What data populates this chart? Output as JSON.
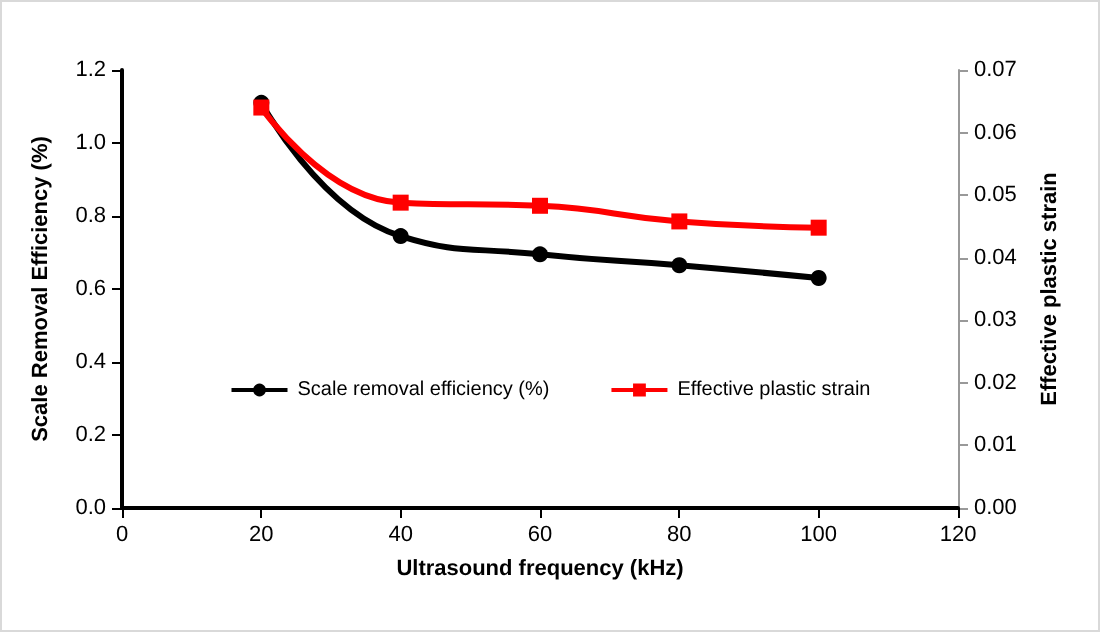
{
  "chart_data": {
    "type": "line",
    "xlabel": "Ultrasound frequency (kHz)",
    "ylabel": "Scale Removal Efficiency (%)",
    "y2label": "Effective plastic strain",
    "x": [
      20,
      40,
      60,
      80,
      100
    ],
    "series": [
      {
        "name": "Scale removal efficiency (%)",
        "color": "#000000",
        "values": [
          1.11,
          0.745,
          0.695,
          0.665,
          0.63
        ],
        "marker": "circle"
      },
      {
        "name": "Effective plastic strain",
        "color": "#ff0000",
        "values": [
          0.064,
          0.0488,
          0.0483,
          0.0458,
          0.0448
        ],
        "marker": "square",
        "axis": "y2"
      }
    ],
    "xlim": [
      0,
      120
    ],
    "xticks": [
      0,
      20,
      40,
      60,
      80,
      100,
      120
    ],
    "ylim": [
      0,
      1.2
    ],
    "yticks": [
      {
        "value": 0,
        "label": "0.0"
      },
      0.2,
      0.4,
      0.6,
      0.8,
      {
        "value": 1,
        "label": "1.0"
      },
      1.2
    ],
    "y2lim": [
      0,
      0.07
    ],
    "y2ticks": [
      {
        "value": 0,
        "label": "0.00"
      },
      0.01,
      0.02,
      0.03,
      0.04,
      0.05,
      0.06,
      0.07
    ],
    "grid": false,
    "legend": "bottom",
    "line_style": "solid"
  }
}
